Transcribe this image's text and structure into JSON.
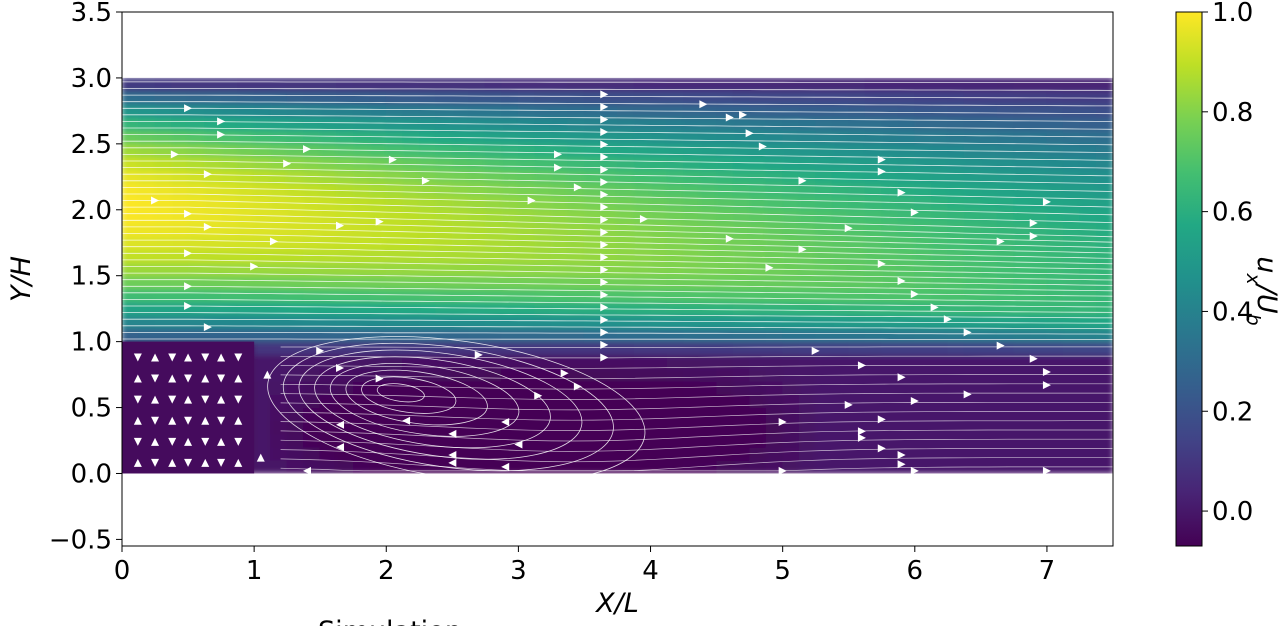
{
  "chart_data": {
    "type": "heatmap",
    "title": "",
    "subtitle": "Simulation",
    "xlabel": "X/L",
    "ylabel": "Y/H",
    "xlim": [
      0,
      7.5
    ],
    "ylim": [
      -0.55,
      3.5
    ],
    "xticks": [
      0,
      1,
      2,
      3,
      4,
      5,
      6,
      7
    ],
    "yticks": [
      -0.5,
      0.0,
      0.5,
      1.0,
      1.5,
      2.0,
      2.5,
      3.0,
      3.5
    ],
    "xtick_labels": [
      "0",
      "1",
      "2",
      "3",
      "4",
      "5",
      "6",
      "7"
    ],
    "ytick_labels": [
      "−0.5",
      "0.0",
      "0.5",
      "1.0",
      "1.5",
      "2.0",
      "2.5",
      "3.0",
      "3.5"
    ],
    "domain": {
      "x": [
        0,
        7.5
      ],
      "y": [
        0,
        3.0
      ]
    },
    "step": {
      "x": [
        0,
        1.0
      ],
      "y": [
        0,
        1.0
      ]
    },
    "recirculation_center": {
      "x": 2.05,
      "y": 0.63
    },
    "colorbar": {
      "label": "u_x/U_b",
      "colormap": "viridis",
      "range": [
        -0.07,
        1.0
      ],
      "ticks": [
        0.0,
        0.2,
        0.4,
        0.6,
        0.8,
        1.0
      ],
      "tick_labels": [
        "0.0",
        "0.2",
        "0.4",
        "0.6",
        "0.8",
        "1.0"
      ]
    },
    "streamlines": {
      "color": "#ffffff",
      "arrow_color": "#ffffff"
    },
    "grid": false
  }
}
